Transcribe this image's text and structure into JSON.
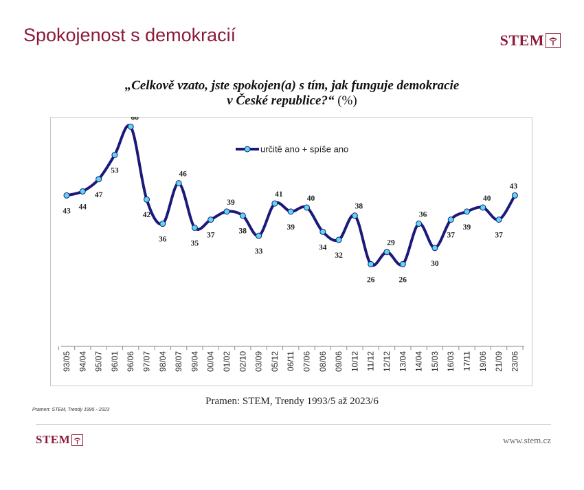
{
  "slide": {
    "title": "Spokojenost s demokracií",
    "logo_text": "STEM",
    "website": "www.stem.cz",
    "small_source": "Pramen: STEM, Trendy 1995 - 2023"
  },
  "colors": {
    "brand": "#8b1a3a",
    "line": "#1a1a7a",
    "marker": "#5fd7ef"
  },
  "chart_data": {
    "type": "line",
    "title_line1": "„Celkově vzato, jste spokojen(a) s tím, jak funguje demokracie",
    "title_line2_italic": "v České republice?“",
    "title_line2_unit": " (%)",
    "source": "Pramen: STEM, Trendy 1993/5 až 2023/6",
    "legend_position": "top-center",
    "grid": false,
    "ylim": [
      0,
      100
    ],
    "categories": [
      "93/05",
      "94/04",
      "95/07",
      "96/01",
      "96/06",
      "97/07",
      "98/04",
      "98/07",
      "99/04",
      "00/04",
      "01/02",
      "02/10",
      "03/09",
      "05/12",
      "06/11",
      "07/06",
      "08/06",
      "09/06",
      "10/12",
      "11/12",
      "12/12",
      "13/04",
      "14/04",
      "15/03",
      "16/03",
      "17/11",
      "19/06",
      "21/09",
      "23/06"
    ],
    "series": [
      {
        "name": "určitě ano + spíše ano",
        "values": [
          43,
          44,
          47,
          53,
          60,
          42,
          36,
          46,
          35,
          37,
          39,
          38,
          33,
          41,
          39,
          40,
          34,
          32,
          38,
          26,
          29,
          26,
          36,
          30,
          37,
          39,
          40,
          37,
          43
        ]
      }
    ]
  }
}
